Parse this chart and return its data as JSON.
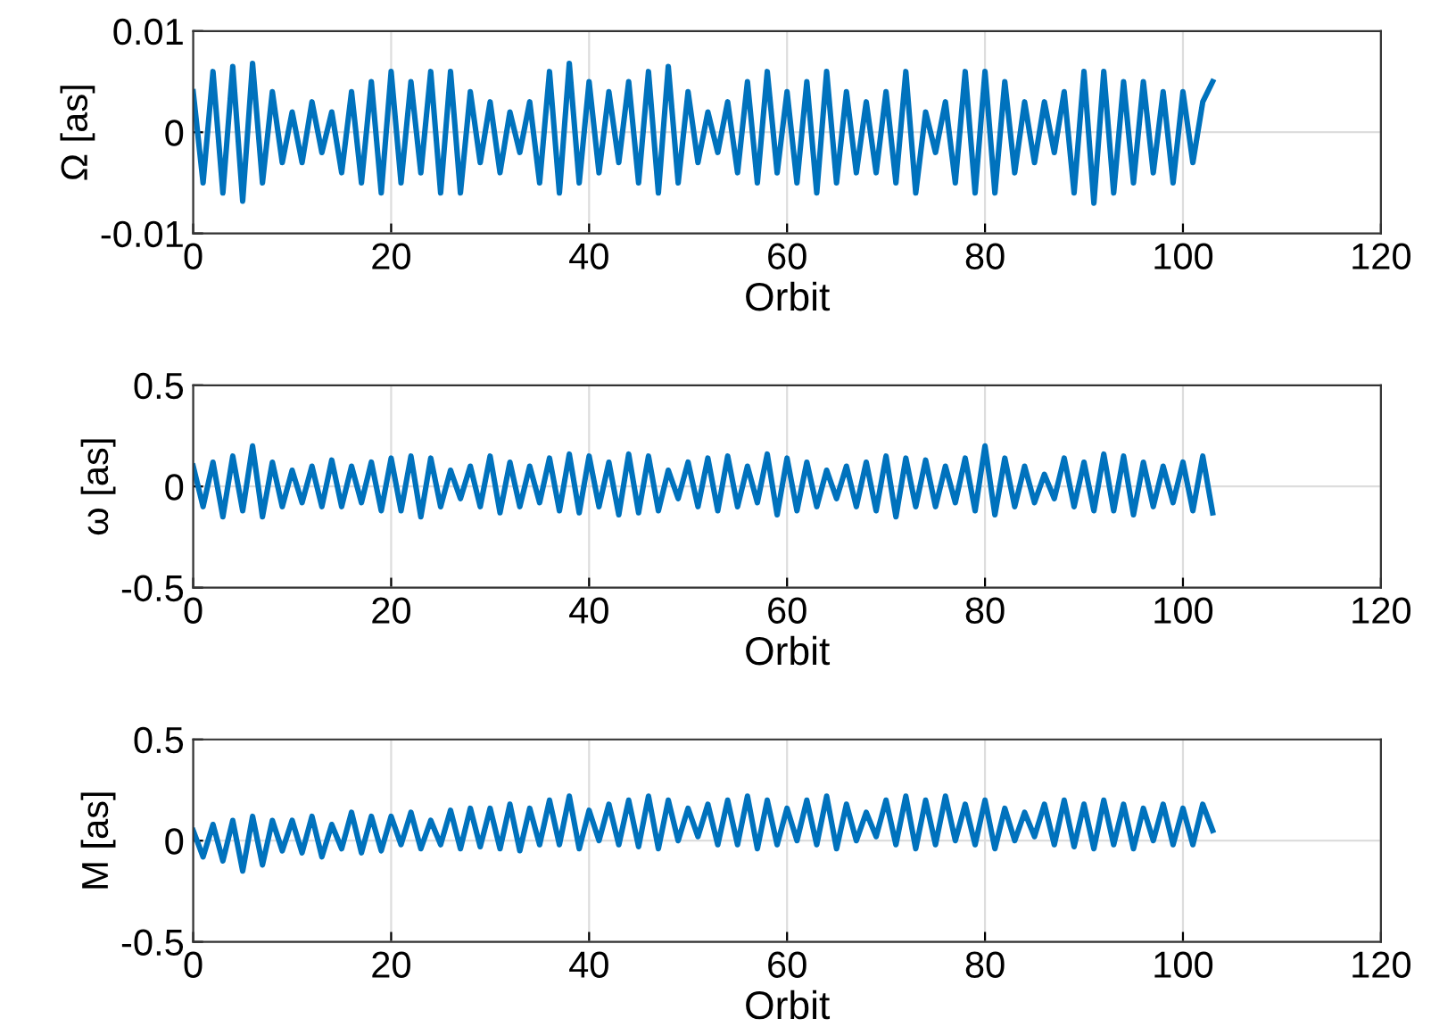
{
  "chart_data": [
    {
      "type": "line",
      "xlabel": "Orbit",
      "ylabel": "Ω [as]",
      "xlim": [
        0,
        120
      ],
      "xticks": [
        0,
        20,
        40,
        60,
        80,
        100,
        120
      ],
      "ylim": [
        -0.01,
        0.01
      ],
      "yticks": [
        -0.01,
        0,
        0.01
      ],
      "grid": true,
      "x": [
        0,
        1,
        2,
        3,
        4,
        5,
        6,
        7,
        8,
        9,
        10,
        11,
        12,
        13,
        14,
        15,
        16,
        17,
        18,
        19,
        20,
        21,
        22,
        23,
        24,
        25,
        26,
        27,
        28,
        29,
        30,
        31,
        32,
        33,
        34,
        35,
        36,
        37,
        38,
        39,
        40,
        41,
        42,
        43,
        44,
        45,
        46,
        47,
        48,
        49,
        50,
        51,
        52,
        53,
        54,
        55,
        56,
        57,
        58,
        59,
        60,
        61,
        62,
        63,
        64,
        65,
        66,
        67,
        68,
        69,
        70,
        71,
        72,
        73,
        74,
        75,
        76,
        77,
        78,
        79,
        80,
        81,
        82,
        83,
        84,
        85,
        86,
        87,
        88,
        89,
        90,
        91,
        92,
        93,
        94,
        95,
        96,
        97,
        98,
        99,
        100,
        101,
        102,
        103
      ],
      "series": [
        {
          "color": "#0072bd",
          "values": [
            0.004,
            -0.005,
            0.006,
            -0.006,
            0.0065,
            -0.0068,
            0.0068,
            -0.005,
            0.004,
            -0.003,
            0.002,
            -0.003,
            0.003,
            -0.002,
            0.002,
            -0.004,
            0.004,
            -0.005,
            0.005,
            -0.006,
            0.006,
            -0.005,
            0.005,
            -0.004,
            0.006,
            -0.006,
            0.006,
            -0.006,
            0.004,
            -0.003,
            0.003,
            -0.004,
            0.002,
            -0.002,
            0.003,
            -0.005,
            0.006,
            -0.006,
            0.0068,
            -0.005,
            0.005,
            -0.004,
            0.004,
            -0.003,
            0.005,
            -0.005,
            0.006,
            -0.006,
            0.0065,
            -0.005,
            0.004,
            -0.003,
            0.002,
            -0.002,
            0.003,
            -0.004,
            0.005,
            -0.005,
            0.006,
            -0.004,
            0.004,
            -0.005,
            0.005,
            -0.006,
            0.006,
            -0.005,
            0.004,
            -0.004,
            0.003,
            -0.004,
            0.004,
            -0.005,
            0.006,
            -0.006,
            0.002,
            -0.002,
            0.003,
            -0.005,
            0.006,
            -0.006,
            0.006,
            -0.006,
            0.005,
            -0.004,
            0.003,
            -0.003,
            0.003,
            -0.002,
            0.004,
            -0.006,
            0.006,
            -0.007,
            0.006,
            -0.006,
            0.005,
            -0.005,
            0.005,
            -0.004,
            0.004,
            -0.005,
            0.004,
            -0.003,
            0.003,
            0.005
          ]
        }
      ]
    },
    {
      "type": "line",
      "xlabel": "Orbit",
      "ylabel": "ω [as]",
      "xlim": [
        0,
        120
      ],
      "xticks": [
        0,
        20,
        40,
        60,
        80,
        100,
        120
      ],
      "ylim": [
        -0.5,
        0.5
      ],
      "yticks": [
        -0.5,
        0,
        0.5
      ],
      "grid": true,
      "x": [
        0,
        1,
        2,
        3,
        4,
        5,
        6,
        7,
        8,
        9,
        10,
        11,
        12,
        13,
        14,
        15,
        16,
        17,
        18,
        19,
        20,
        21,
        22,
        23,
        24,
        25,
        26,
        27,
        28,
        29,
        30,
        31,
        32,
        33,
        34,
        35,
        36,
        37,
        38,
        39,
        40,
        41,
        42,
        43,
        44,
        45,
        46,
        47,
        48,
        49,
        50,
        51,
        52,
        53,
        54,
        55,
        56,
        57,
        58,
        59,
        60,
        61,
        62,
        63,
        64,
        65,
        66,
        67,
        68,
        69,
        70,
        71,
        72,
        73,
        74,
        75,
        76,
        77,
        78,
        79,
        80,
        81,
        82,
        83,
        84,
        85,
        86,
        87,
        88,
        89,
        90,
        91,
        92,
        93,
        94,
        95,
        96,
        97,
        98,
        99,
        100,
        101,
        102,
        103
      ],
      "series": [
        {
          "color": "#0072bd",
          "values": [
            0.1,
            -0.1,
            0.12,
            -0.15,
            0.15,
            -0.12,
            0.2,
            -0.15,
            0.12,
            -0.1,
            0.08,
            -0.08,
            0.1,
            -0.1,
            0.13,
            -0.1,
            0.1,
            -0.08,
            0.12,
            -0.12,
            0.14,
            -0.12,
            0.15,
            -0.15,
            0.14,
            -0.1,
            0.08,
            -0.06,
            0.1,
            -0.1,
            0.15,
            -0.13,
            0.12,
            -0.1,
            0.1,
            -0.08,
            0.14,
            -0.12,
            0.16,
            -0.13,
            0.15,
            -0.1,
            0.12,
            -0.14,
            0.16,
            -0.13,
            0.15,
            -0.12,
            0.08,
            -0.06,
            0.12,
            -0.1,
            0.14,
            -0.12,
            0.15,
            -0.1,
            0.1,
            -0.08,
            0.16,
            -0.14,
            0.14,
            -0.12,
            0.12,
            -0.1,
            0.08,
            -0.06,
            0.1,
            -0.1,
            0.12,
            -0.12,
            0.15,
            -0.15,
            0.14,
            -0.1,
            0.13,
            -0.1,
            0.1,
            -0.08,
            0.14,
            -0.12,
            0.2,
            -0.14,
            0.14,
            -0.1,
            0.1,
            -0.08,
            0.06,
            -0.06,
            0.14,
            -0.1,
            0.12,
            -0.12,
            0.16,
            -0.12,
            0.15,
            -0.14,
            0.12,
            -0.1,
            0.1,
            -0.08,
            0.12,
            -0.12,
            0.15,
            -0.13
          ]
        }
      ]
    },
    {
      "type": "line",
      "xlabel": "Orbit",
      "ylabel": "M [as]",
      "xlim": [
        0,
        120
      ],
      "xticks": [
        0,
        20,
        40,
        60,
        80,
        100,
        120
      ],
      "ylim": [
        -0.5,
        0.5
      ],
      "yticks": [
        -0.5,
        0,
        0.5
      ],
      "grid": true,
      "x": [
        0,
        1,
        2,
        3,
        4,
        5,
        6,
        7,
        8,
        9,
        10,
        11,
        12,
        13,
        14,
        15,
        16,
        17,
        18,
        19,
        20,
        21,
        22,
        23,
        24,
        25,
        26,
        27,
        28,
        29,
        30,
        31,
        32,
        33,
        34,
        35,
        36,
        37,
        38,
        39,
        40,
        41,
        42,
        43,
        44,
        45,
        46,
        47,
        48,
        49,
        50,
        51,
        52,
        53,
        54,
        55,
        56,
        57,
        58,
        59,
        60,
        61,
        62,
        63,
        64,
        65,
        66,
        67,
        68,
        69,
        70,
        71,
        72,
        73,
        74,
        75,
        76,
        77,
        78,
        79,
        80,
        81,
        82,
        83,
        84,
        85,
        86,
        87,
        88,
        89,
        90,
        91,
        92,
        93,
        94,
        95,
        96,
        97,
        98,
        99,
        100,
        101,
        102,
        103
      ],
      "series": [
        {
          "color": "#0072bd",
          "values": [
            0.05,
            -0.08,
            0.08,
            -0.1,
            0.1,
            -0.15,
            0.12,
            -0.12,
            0.1,
            -0.05,
            0.1,
            -0.06,
            0.12,
            -0.08,
            0.08,
            -0.04,
            0.14,
            -0.06,
            0.12,
            -0.05,
            0.12,
            -0.02,
            0.14,
            -0.04,
            0.1,
            -0.02,
            0.15,
            -0.04,
            0.16,
            -0.03,
            0.16,
            -0.04,
            0.18,
            -0.05,
            0.16,
            -0.02,
            0.2,
            -0.02,
            0.22,
            -0.04,
            0.15,
            0.0,
            0.18,
            -0.02,
            0.2,
            -0.03,
            0.22,
            -0.04,
            0.2,
            0.0,
            0.16,
            0.02,
            0.18,
            -0.02,
            0.2,
            -0.02,
            0.22,
            -0.04,
            0.2,
            -0.02,
            0.16,
            0.0,
            0.2,
            -0.02,
            0.22,
            -0.04,
            0.18,
            0.0,
            0.14,
            0.02,
            0.2,
            -0.02,
            0.22,
            -0.04,
            0.2,
            -0.02,
            0.22,
            0.0,
            0.18,
            -0.02,
            0.2,
            -0.04,
            0.16,
            0.0,
            0.14,
            0.02,
            0.18,
            -0.02,
            0.2,
            -0.03,
            0.18,
            -0.04,
            0.2,
            -0.02,
            0.18,
            -0.04,
            0.16,
            0.0,
            0.18,
            -0.02,
            0.16,
            -0.02,
            0.18,
            0.05
          ]
        }
      ]
    }
  ]
}
